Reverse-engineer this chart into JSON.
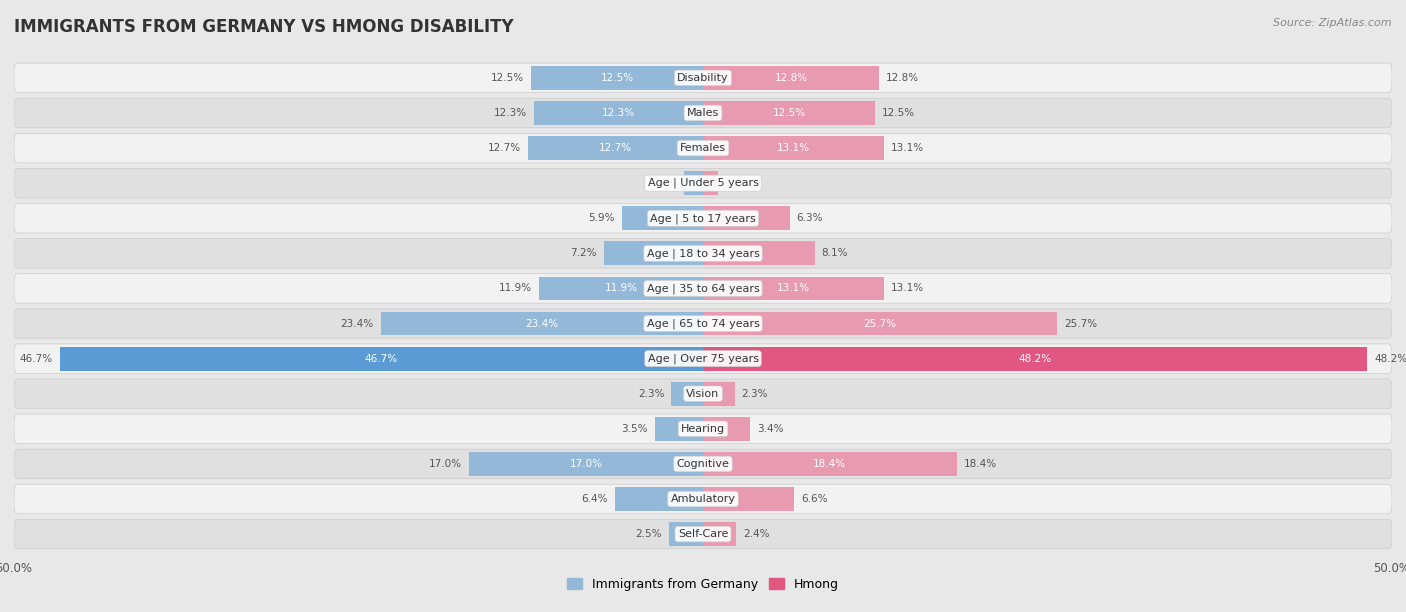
{
  "title": "IMMIGRANTS FROM GERMANY VS HMONG DISABILITY",
  "source": "Source: ZipAtlas.com",
  "categories": [
    "Disability",
    "Males",
    "Females",
    "Age | Under 5 years",
    "Age | 5 to 17 years",
    "Age | 18 to 34 years",
    "Age | 35 to 64 years",
    "Age | 65 to 74 years",
    "Age | Over 75 years",
    "Vision",
    "Hearing",
    "Cognitive",
    "Ambulatory",
    "Self-Care"
  ],
  "germany_values": [
    12.5,
    12.3,
    12.7,
    1.4,
    5.9,
    7.2,
    11.9,
    23.4,
    46.7,
    2.3,
    3.5,
    17.0,
    6.4,
    2.5
  ],
  "hmong_values": [
    12.8,
    12.5,
    13.1,
    1.1,
    6.3,
    8.1,
    13.1,
    25.7,
    48.2,
    2.3,
    3.4,
    18.4,
    6.6,
    2.4
  ],
  "germany_color": "#93b8d8",
  "hmong_color": "#e89ab0",
  "germany_color_strong": "#5b9bd5",
  "hmong_color_strong": "#e05882",
  "max_value": 50.0,
  "background_color": "#e8e8e8",
  "row_bg_odd": "#f2f2f2",
  "row_bg_even": "#e0e0e0",
  "title_fontsize": 12,
  "label_fontsize": 8,
  "value_fontsize": 7.5,
  "legend_fontsize": 9,
  "source_fontsize": 8
}
